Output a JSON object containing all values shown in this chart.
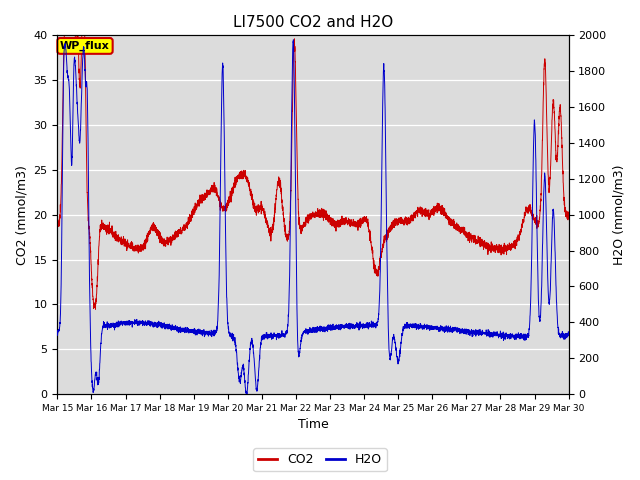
{
  "title": "LI7500 CO2 and H2O",
  "xlabel": "Time",
  "ylabel_left": "CO2 (mmol/m3)",
  "ylabel_right": "H2O (mmol/m3)",
  "xlim_days": [
    15,
    30
  ],
  "ylim_left": [
    0,
    40
  ],
  "ylim_right": [
    0,
    2000
  ],
  "co2_color": "#cc0000",
  "h2o_color": "#0000cc",
  "background_color": "#dcdcdc",
  "legend_label_co2": "CO2",
  "legend_label_h2o": "H2O",
  "annotation_text": "WP_flux",
  "annotation_bg": "#ffff00",
  "annotation_border": "#cc0000",
  "x_tick_labels": [
    "Mar 15",
    "Mar 16",
    "Mar 17",
    "Mar 18",
    "Mar 19",
    "Mar 20",
    "Mar 21",
    "Mar 22",
    "Mar 23",
    "Mar 24",
    "Mar 25",
    "Mar 26",
    "Mar 27",
    "Mar 28",
    "Mar 29",
    "Mar 30"
  ],
  "x_tick_positions": [
    15,
    16,
    17,
    18,
    19,
    20,
    21,
    22,
    23,
    24,
    25,
    26,
    27,
    28,
    29,
    30
  ],
  "yticks_left": [
    0,
    5,
    10,
    15,
    20,
    25,
    30,
    35,
    40
  ],
  "yticks_right": [
    0,
    200,
    400,
    600,
    800,
    1000,
    1200,
    1400,
    1600,
    1800,
    2000
  ]
}
